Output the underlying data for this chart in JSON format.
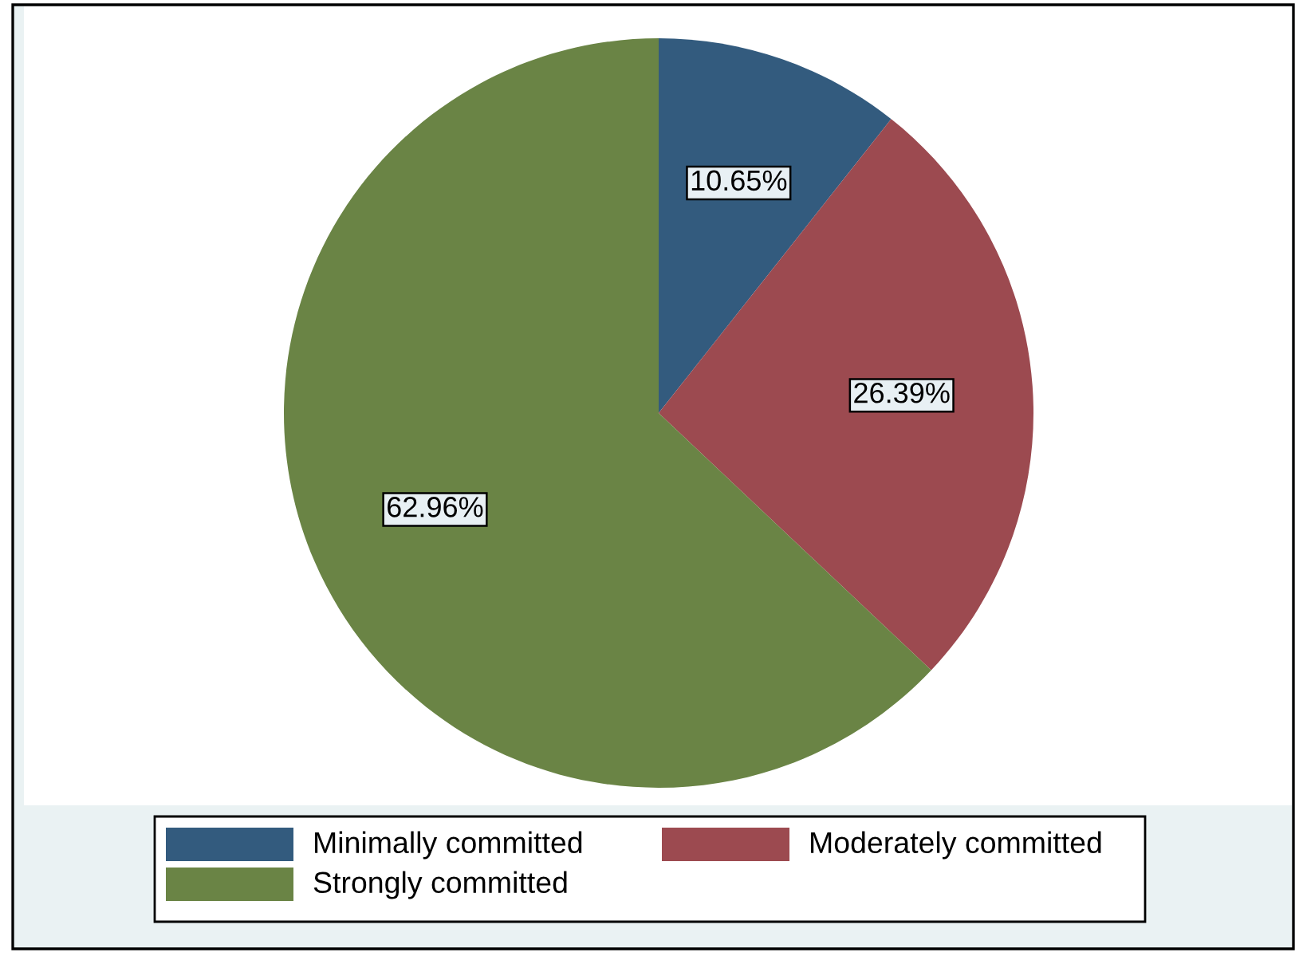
{
  "chart_data": {
    "type": "pie",
    "categories": [
      "Minimally committed",
      "Moderately committed",
      "Strongly committed"
    ],
    "values": [
      10.65,
      26.39,
      62.96
    ],
    "colors": [
      "#335b7e",
      "#9c4a50",
      "#6a8445"
    ],
    "value_labels": [
      "10.65%",
      "26.39%",
      "62.96%"
    ],
    "legend": "bottom"
  }
}
